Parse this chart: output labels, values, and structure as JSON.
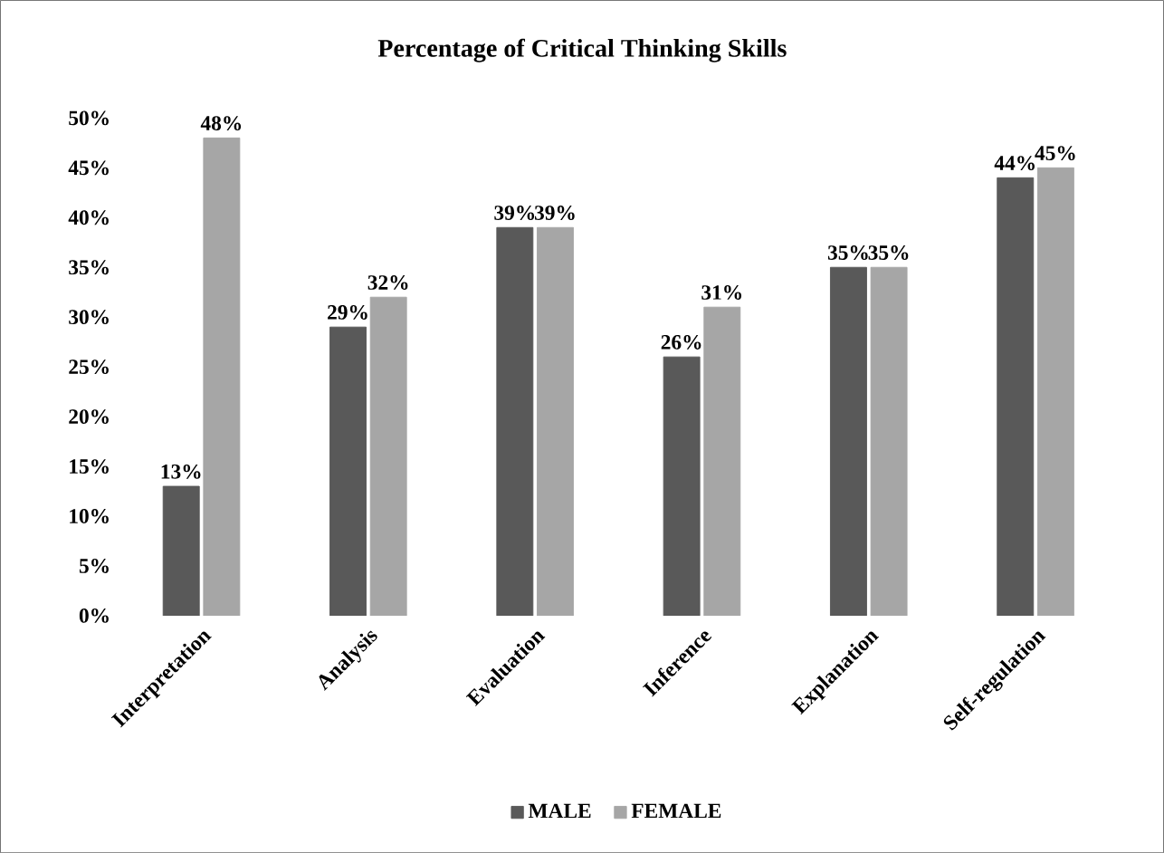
{
  "chart_data": {
    "type": "bar",
    "title": "Percentage of Critical Thinking Skills",
    "categories": [
      "Interpretation",
      "Analysis",
      "Evaluation",
      "Inference",
      "Explanation",
      "Self-regulation"
    ],
    "series": [
      {
        "name": "MALE",
        "color": "#595959",
        "values": [
          13,
          29,
          39,
          26,
          35,
          44
        ],
        "value_labels": [
          "13%",
          "29%",
          "39%",
          "26%",
          "35%",
          "44%"
        ]
      },
      {
        "name": "FEMALE",
        "color": "#a6a6a6",
        "values": [
          48,
          32,
          39,
          31,
          35,
          45
        ],
        "value_labels": [
          "48%",
          "32%",
          "39%",
          "31%",
          "35%",
          "45%"
        ]
      }
    ],
    "ylim": [
      0,
      50
    ],
    "yticks": [
      {
        "value": 0,
        "label": "0%"
      },
      {
        "value": 5,
        "label": "5%"
      },
      {
        "value": 10,
        "label": "10%"
      },
      {
        "value": 15,
        "label": "15%"
      },
      {
        "value": 20,
        "label": "20%"
      },
      {
        "value": 25,
        "label": "25%"
      },
      {
        "value": 30,
        "label": "30%"
      },
      {
        "value": 35,
        "label": "35%"
      },
      {
        "value": 40,
        "label": "40%"
      },
      {
        "value": 45,
        "label": "45%"
      },
      {
        "value": 50,
        "label": "50%"
      }
    ],
    "legend": "bottom"
  }
}
